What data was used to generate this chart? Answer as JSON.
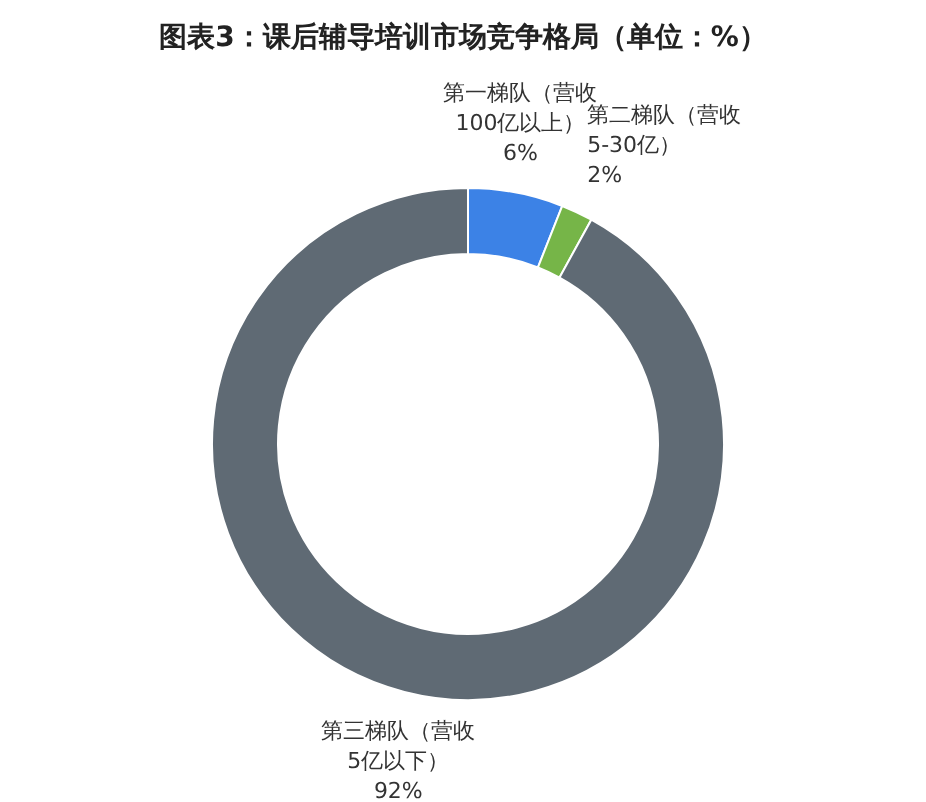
{
  "chart_data": {
    "type": "donut",
    "title": "图表3：课后辅导培训市场竞争格局（单位：%）",
    "categories": [
      "第一梯队（营收100亿以上）",
      "第二梯队（营收5-30亿）",
      "第三梯队（营收5亿以下）"
    ],
    "values": [
      6,
      2,
      92
    ],
    "colors": [
      "#3c82e6",
      "#76b548",
      "#5f6a74"
    ],
    "value_labels": [
      "6%",
      "2%",
      "92%"
    ]
  }
}
